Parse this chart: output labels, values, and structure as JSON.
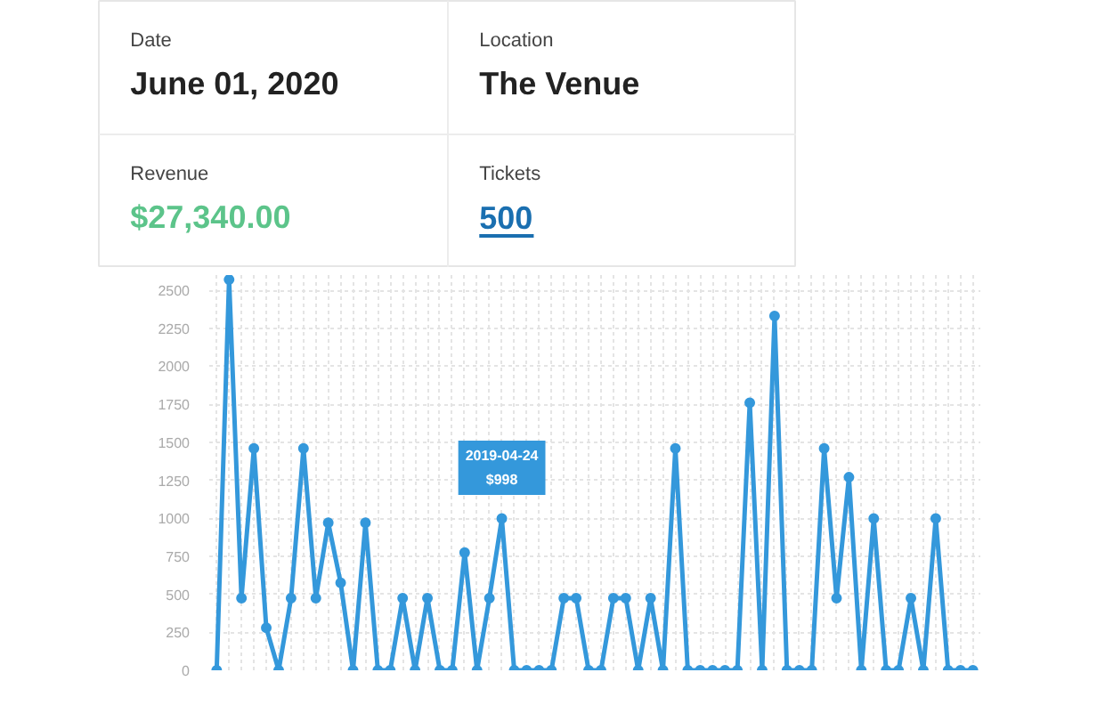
{
  "chart_data": [
    {
      "type": "other",
      "annotations": [
        "Date",
        "June 01, 2020",
        "Location",
        "The Venue",
        "Revenue",
        "$27,340.00",
        "Tickets",
        "500"
      ]
    },
    {
      "type": "line",
      "categories": [
        null,
        null,
        null,
        null,
        null,
        null,
        null,
        null,
        null,
        null,
        null,
        null,
        null,
        null,
        null,
        null,
        null,
        null,
        null,
        null,
        null,
        null,
        null,
        null,
        null,
        null,
        null,
        null,
        null,
        null,
        null,
        null,
        null,
        null,
        null,
        null,
        null,
        null,
        null,
        null,
        null,
        null,
        null,
        null,
        null,
        null,
        null,
        null,
        null,
        null,
        null,
        null,
        null,
        null,
        null,
        null,
        null,
        null,
        null,
        null,
        null,
        null
      ],
      "series": [
        {
          "color": "#3498db",
          "values": [
            0,
            2570,
            475,
            1460,
            280,
            0,
            475,
            1460,
            475,
            970,
            575,
            0,
            970,
            0,
            0,
            475,
            0,
            475,
            0,
            0,
            775,
            0,
            475,
            998,
            0,
            0,
            0,
            0,
            475,
            475,
            0,
            0,
            475,
            475,
            0,
            475,
            0,
            1460,
            0,
            0,
            0,
            0,
            0,
            1760,
            0,
            2330,
            0,
            0,
            0,
            1460,
            475,
            1270,
            0,
            998,
            0,
            0,
            475,
            0,
            998,
            0,
            0,
            0
          ]
        }
      ],
      "ylim": [
        0,
        2600
      ],
      "yticks": [
        0,
        250,
        500,
        750,
        1000,
        1250,
        1500,
        1750,
        2000,
        2250,
        2500
      ],
      "grid": true,
      "marker": "circle",
      "line_style": "solid",
      "tick_labels": "y",
      "annotations": [
        {
          "text": "2019-04-24\n$998",
          "y": 998
        }
      ]
    }
  ]
}
